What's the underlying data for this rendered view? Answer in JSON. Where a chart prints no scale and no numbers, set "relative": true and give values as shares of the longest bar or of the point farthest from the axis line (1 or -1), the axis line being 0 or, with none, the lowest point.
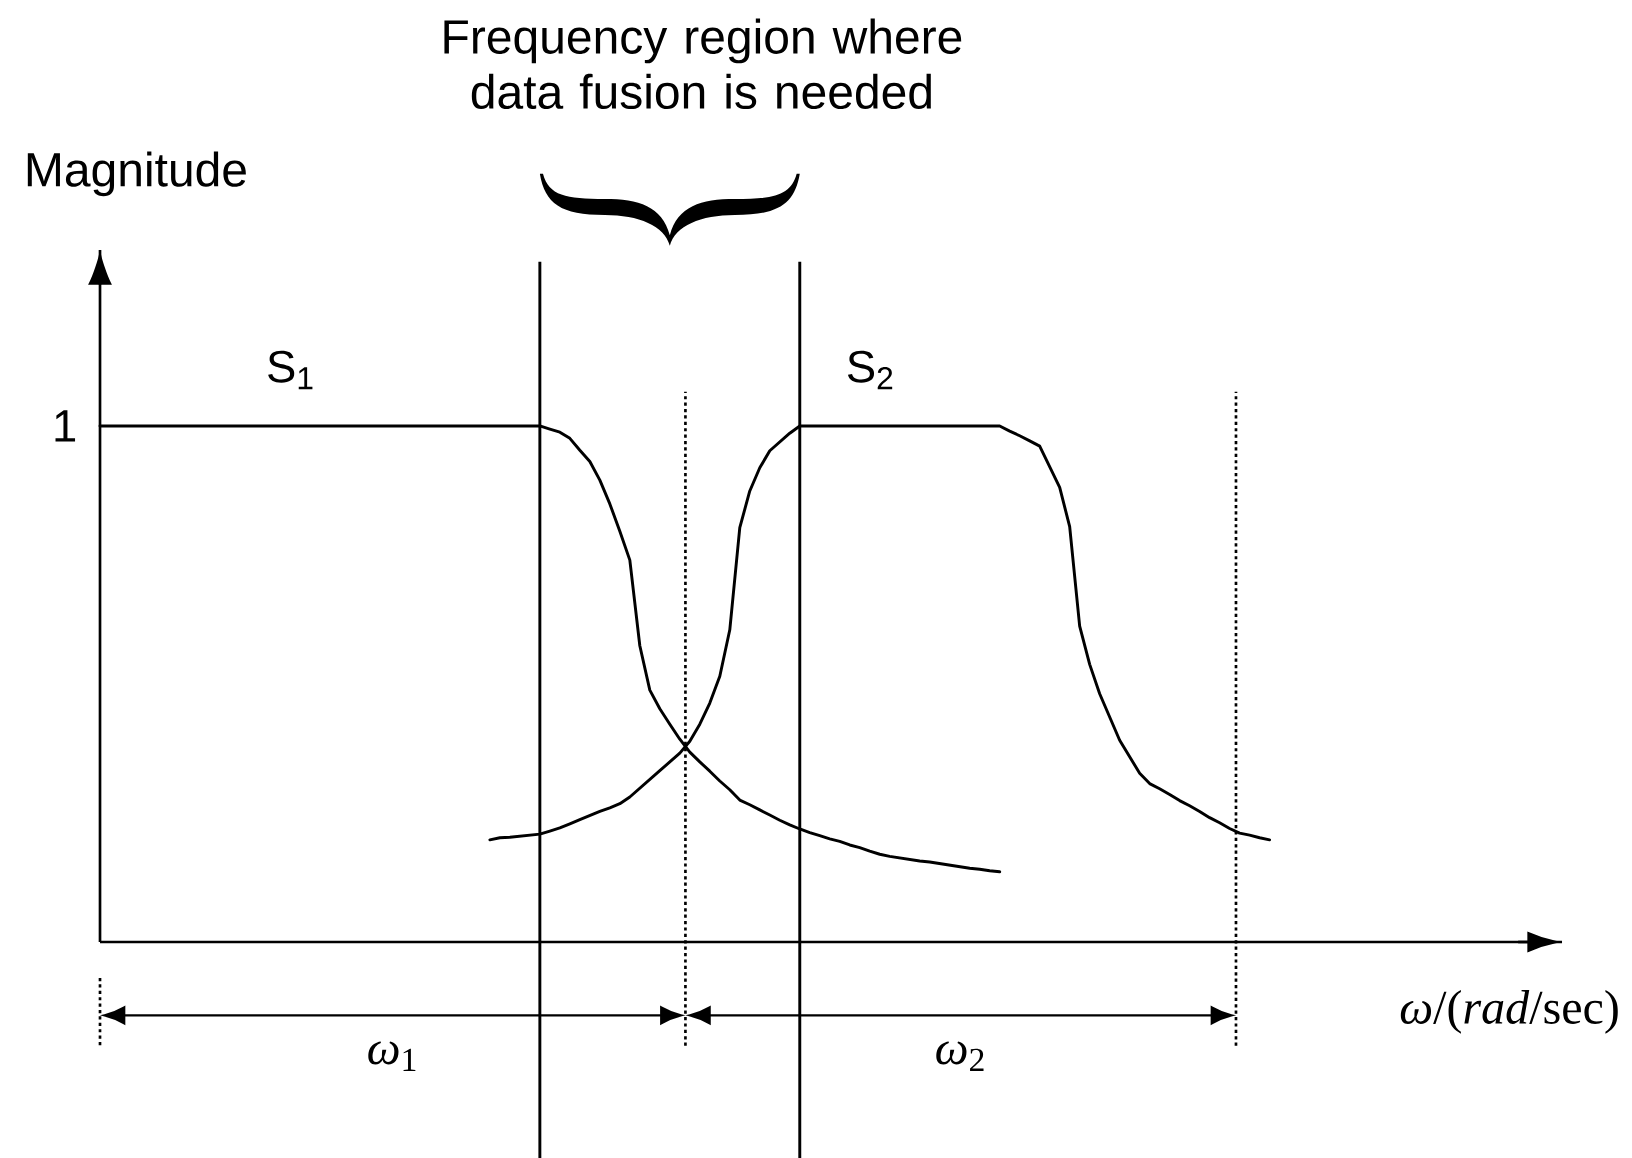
{
  "chart_data": {
    "type": "line",
    "relative": true,
    "xlabel": "*ω*/(*rad*/sec)",
    "ylabel": "Magnitude",
    "categories": [
      null,
      null,
      null,
      null,
      null,
      null,
      null,
      null,
      null,
      null,
      null,
      null,
      null,
      null,
      null,
      null,
      null,
      null,
      null,
      null,
      null,
      null,
      null,
      null,
      null,
      null,
      null,
      null,
      null,
      null,
      null,
      null,
      null,
      null,
      null,
      null,
      null,
      null,
      null,
      null,
      null,
      null,
      null,
      null,
      null,
      null,
      null,
      null,
      null,
      null,
      null,
      null,
      null,
      null,
      null,
      null,
      null,
      null,
      null,
      null,
      null,
      null,
      null,
      null,
      null,
      null,
      null,
      null,
      null,
      null,
      null,
      null,
      null,
      null,
      null,
      null,
      null,
      null,
      null,
      null,
      null,
      null,
      null,
      null,
      null,
      null,
      null,
      null,
      null,
      null,
      null,
      null,
      null,
      null,
      null,
      null,
      null,
      null,
      null,
      null,
      null,
      null,
      null,
      null,
      null,
      null,
      null,
      null,
      null,
      null,
      null,
      null,
      null,
      null,
      null,
      null,
      null,
      null
    ],
    "series": [
      {
        "name": "S$_{1}$",
        "color": "#000000",
        "values": [
          1,
          1,
          1,
          1,
          1,
          1,
          1,
          1,
          1,
          1,
          1,
          1,
          1,
          1,
          1,
          1,
          1,
          1,
          1,
          1,
          1,
          1,
          1,
          1,
          1,
          1,
          1,
          1,
          1,
          1,
          1,
          1,
          1,
          1,
          1,
          1,
          1,
          1,
          1,
          1,
          1,
          1,
          1,
          1,
          1,
          0.994,
          0.988,
          0.976,
          0.953,
          0.931,
          0.895,
          0.849,
          0.796,
          0.74,
          0.574,
          0.488,
          0.452,
          0.422,
          0.393,
          0.368,
          0.349,
          0.331,
          0.312,
          0.295,
          0.275,
          0.266,
          0.256,
          0.246,
          0.236,
          0.227,
          0.219,
          0.212,
          0.206,
          0.2,
          0.195,
          0.188,
          0.183,
          0.176,
          0.17,
          0.166,
          0.163,
          0.16,
          0.157,
          0.155,
          0.152,
          0.149,
          0.146,
          0.143,
          0.141,
          0.138,
          0.136,
          null,
          null,
          null,
          null,
          null,
          null,
          null,
          null,
          null,
          null,
          null,
          null,
          null,
          null,
          null,
          null,
          null,
          null,
          null,
          null,
          null,
          null,
          null,
          null,
          null,
          null,
          null
        ]
      },
      {
        "name": "S$_{2}$",
        "color": "#000000",
        "values": [
          null,
          null,
          null,
          null,
          null,
          null,
          null,
          null,
          null,
          null,
          null,
          null,
          null,
          null,
          null,
          null,
          null,
          null,
          null,
          null,
          null,
          null,
          null,
          null,
          null,
          null,
          null,
          null,
          null,
          null,
          null,
          null,
          null,
          null,
          null,
          null,
          null,
          null,
          null,
          0.198,
          0.202,
          0.203,
          0.205,
          0.207,
          0.209,
          0.215,
          0.221,
          0.229,
          0.237,
          0.245,
          0.253,
          0.26,
          0.268,
          0.281,
          0.298,
          0.315,
          0.332,
          0.349,
          0.366,
          0.389,
          0.422,
          0.463,
          0.515,
          0.605,
          0.803,
          0.874,
          0.919,
          0.952,
          0.969,
          0.986,
          1,
          1,
          1,
          1,
          1,
          1,
          1,
          1,
          1,
          1,
          1,
          1,
          1,
          1,
          1,
          1,
          1,
          1,
          1,
          1,
          1,
          0.99,
          0.981,
          0.971,
          0.961,
          0.921,
          0.881,
          0.805,
          0.612,
          0.538,
          0.481,
          0.436,
          0.391,
          0.359,
          0.327,
          0.307,
          0.297,
          0.286,
          0.274,
          0.264,
          0.253,
          0.241,
          0.231,
          0.22,
          0.211,
          0.207,
          0.202,
          0.198
        ]
      }
    ],
    "annotations": [
      "Frequency region where data fusion is needed",
      "1",
      "*ω*$_{1}$",
      "*ω*$_{2}$"
    ]
  }
}
